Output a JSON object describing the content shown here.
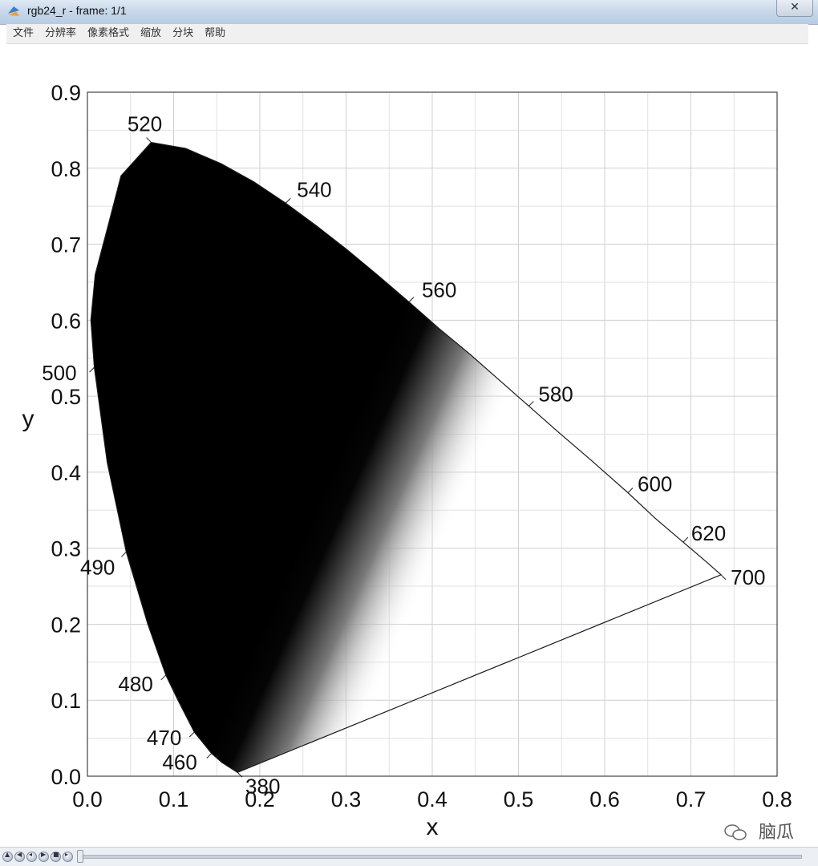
{
  "window": {
    "title": "rgb24_r - frame: 1/1",
    "close_label": "✕"
  },
  "menu": [
    "文件",
    "分辨率",
    "像素格式",
    "缩放",
    "分块",
    "帮助"
  ],
  "chart_data": {
    "type": "scatter",
    "xlabel": "x",
    "ylabel": "y",
    "xlim": [
      0.0,
      0.8
    ],
    "ylim": [
      0.0,
      0.9
    ],
    "x_ticks": [
      "0.0",
      "0.1",
      "0.2",
      "0.3",
      "0.4",
      "0.5",
      "0.6",
      "0.7",
      "0.8"
    ],
    "y_ticks": [
      "0.0",
      "0.1",
      "0.2",
      "0.3",
      "0.4",
      "0.5",
      "0.6",
      "0.7",
      "0.8",
      "0.9"
    ],
    "grid": true,
    "locus_points": [
      {
        "wavelength": "380",
        "x": 0.174,
        "y": 0.005
      },
      {
        "wavelength": "460",
        "x": 0.144,
        "y": 0.03
      },
      {
        "wavelength": "470",
        "x": 0.124,
        "y": 0.058
      },
      {
        "wavelength": "480",
        "x": 0.091,
        "y": 0.133
      },
      {
        "wavelength": "490",
        "x": 0.045,
        "y": 0.295
      },
      {
        "wavelength": "500",
        "x": 0.008,
        "y": 0.538
      },
      {
        "wavelength": "520",
        "x": 0.074,
        "y": 0.834
      },
      {
        "wavelength": "540",
        "x": 0.23,
        "y": 0.754
      },
      {
        "wavelength": "560",
        "x": 0.373,
        "y": 0.624
      },
      {
        "wavelength": "580",
        "x": 0.512,
        "y": 0.487
      },
      {
        "wavelength": "600",
        "x": 0.627,
        "y": 0.373
      },
      {
        "wavelength": "620",
        "x": 0.691,
        "y": 0.308
      },
      {
        "wavelength": "700",
        "x": 0.735,
        "y": 0.265
      }
    ]
  },
  "watermark": "脑瓜"
}
